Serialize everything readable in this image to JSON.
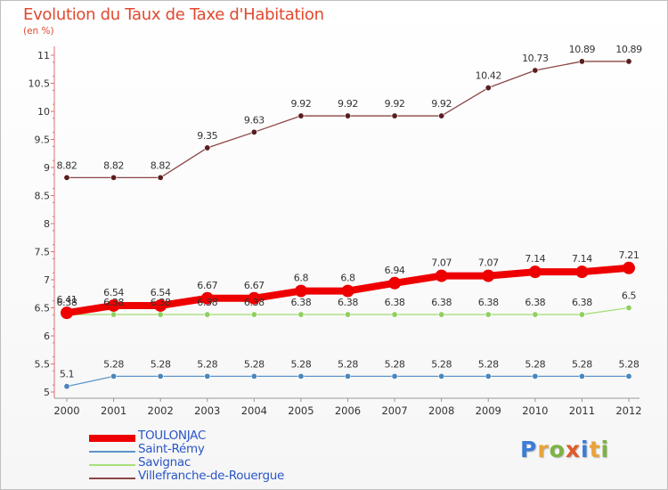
{
  "chart_data": {
    "type": "line",
    "title": "Evolution du Taux de Taxe d'Habitation",
    "subtitle": "(en %)",
    "xlabel": "",
    "ylabel": "",
    "x": [
      "2000",
      "2001",
      "2002",
      "2003",
      "2004",
      "2005",
      "2006",
      "2007",
      "2008",
      "2009",
      "2010",
      "2011",
      "2012"
    ],
    "ylim": [
      5,
      11
    ],
    "yticks": [
      5,
      5.5,
      6,
      6.5,
      7,
      7.5,
      8,
      8.5,
      9,
      9.5,
      10,
      10.5,
      11
    ],
    "grid": false,
    "legend_position": "bottom-left",
    "series": [
      {
        "name": "TOULONJAC",
        "color": "#ee0000",
        "values": [
          6.41,
          6.54,
          6.54,
          6.67,
          6.67,
          6.8,
          6.8,
          6.94,
          7.07,
          7.07,
          7.14,
          7.14,
          7.21
        ]
      },
      {
        "name": "Saint-Rémy",
        "color": "#5b95c9",
        "values": [
          5.1,
          5.28,
          5.28,
          5.28,
          5.28,
          5.28,
          5.28,
          5.28,
          5.28,
          5.28,
          5.28,
          5.28,
          5.28
        ]
      },
      {
        "name": "Savignac",
        "color": "#99d96b",
        "values": [
          6.38,
          6.38,
          6.38,
          6.38,
          6.38,
          6.38,
          6.38,
          6.38,
          6.38,
          6.38,
          6.38,
          6.38,
          6.5
        ]
      },
      {
        "name": "Villefranche-de-Rouergue",
        "color": "#7a3535",
        "values": [
          8.82,
          8.82,
          8.82,
          9.35,
          9.63,
          9.92,
          9.92,
          9.92,
          9.92,
          10.42,
          10.73,
          10.89,
          10.89
        ]
      }
    ]
  },
  "logo": {
    "letters": [
      "P",
      "r",
      "o",
      "x",
      "i",
      "t",
      "i"
    ],
    "colors": [
      "#3b7dd8",
      "#e8a33b",
      "#7cb342",
      "#e05a2b",
      "#3b7dd8",
      "#e8a33b",
      "#7cb342"
    ]
  }
}
